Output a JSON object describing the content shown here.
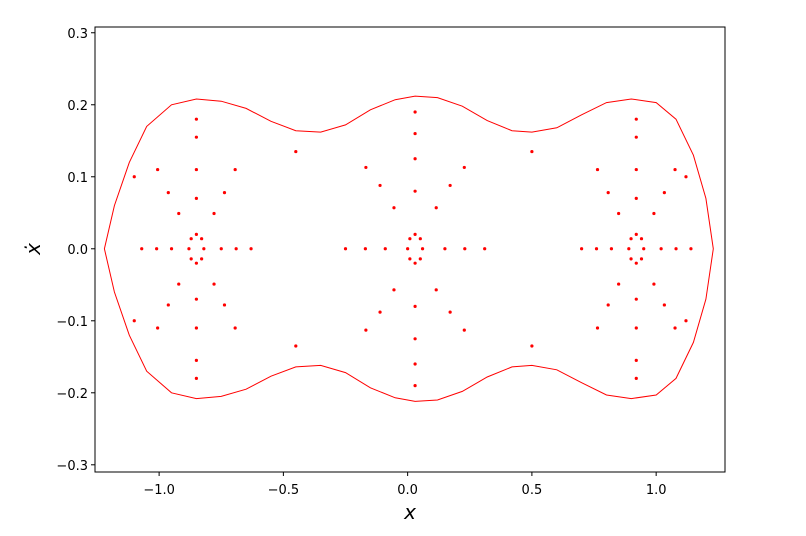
{
  "chart_data": {
    "type": "scatter",
    "xlabel": "x",
    "ylabel": "ẋ",
    "xlim": [
      -1.258,
      1.277
    ],
    "ylim": [
      -0.31,
      0.308
    ],
    "xticks": [
      {
        "value": -1.0,
        "label": "−1.0"
      },
      {
        "value": -0.5,
        "label": "−0.5"
      },
      {
        "value": 0.0,
        "label": "0.0"
      },
      0.5,
      {
        "value": 1.0,
        "label": "1.0"
      }
    ],
    "yticks": [
      {
        "value": -0.3,
        "label": "−0.3"
      },
      {
        "value": -0.2,
        "label": "−0.2"
      },
      {
        "value": -0.1,
        "label": "−0.1"
      },
      {
        "value": 0.0,
        "label": "0.0"
      },
      0.1,
      0.2,
      0.3
    ],
    "series": [
      {
        "mode": "line",
        "color": "#ff0000",
        "x": [
          -1.22,
          -1.18,
          -1.12,
          -1.05,
          -0.95,
          -0.85,
          -0.75,
          -0.65,
          -0.55,
          -0.45,
          -0.35,
          -0.25,
          -0.15,
          -0.05,
          0.03,
          0.12,
          0.22,
          0.32,
          0.42,
          0.5,
          0.6,
          0.7,
          0.8,
          0.9,
          1.0,
          1.08,
          1.15,
          1.2,
          1.23,
          1.2,
          1.15,
          1.08,
          1.0,
          0.9,
          0.8,
          0.7,
          0.6,
          0.5,
          0.42,
          0.32,
          0.22,
          0.12,
          0.03,
          -0.05,
          -0.15,
          -0.25,
          -0.35,
          -0.45,
          -0.55,
          -0.65,
          -0.75,
          -0.85,
          -0.95,
          -1.05,
          -1.12,
          -1.18
        ],
        "y": [
          0,
          0.06,
          0.12,
          0.17,
          0.2,
          0.208,
          0.205,
          0.195,
          0.177,
          0.164,
          0.162,
          0.172,
          0.193,
          0.207,
          0.212,
          0.21,
          0.198,
          0.178,
          0.164,
          0.162,
          0.168,
          0.186,
          0.203,
          0.208,
          0.203,
          0.18,
          0.13,
          0.07,
          0,
          -0.07,
          -0.13,
          -0.18,
          -0.203,
          -0.208,
          -0.203,
          -0.186,
          -0.168,
          -0.162,
          -0.164,
          -0.178,
          -0.198,
          -0.21,
          -0.212,
          -0.207,
          -0.193,
          -0.172,
          -0.162,
          -0.164,
          -0.177,
          -0.195,
          -0.205,
          -0.208,
          -0.2,
          -0.17,
          -0.12,
          -0.06
        ]
      },
      {
        "mode": "markers",
        "color": "#ff0000",
        "x": [
          -0.82,
          -0.829,
          -0.85,
          -0.871,
          -0.88,
          -0.871,
          -0.85,
          -0.829,
          -0.75,
          -0.779,
          -0.85,
          -0.921,
          -0.95,
          -0.921,
          -0.85,
          -0.779,
          -0.69,
          -0.737,
          -0.85,
          -0.963,
          -1.01,
          -0.963,
          -0.85,
          -0.737,
          -0.63,
          -0.694,
          -0.85,
          -1.006,
          -1.07,
          -1.006,
          -0.85,
          -0.694,
          0.95,
          0.941,
          0.92,
          0.899,
          0.89,
          0.899,
          0.92,
          0.941,
          1.02,
          0.991,
          0.92,
          0.849,
          0.82,
          0.849,
          0.92,
          0.991,
          1.08,
          1.033,
          0.92,
          0.807,
          0.76,
          0.807,
          0.92,
          1.033,
          1.14,
          1.076,
          0.92,
          0.764,
          0.7,
          0.764,
          0.92,
          1.076,
          0.06,
          0.051,
          0.03,
          0.009,
          0,
          0.009,
          0.03,
          0.051,
          0.15,
          0.115,
          0.03,
          -0.055,
          -0.09,
          -0.055,
          0.03,
          0.115,
          0.23,
          0.171,
          0.03,
          -0.111,
          -0.17,
          -0.111,
          0.03,
          0.171,
          0.31,
          0.228,
          0.03,
          -0.168,
          -0.25,
          -0.168,
          0.03,
          0.228,
          -1.1,
          -0.85,
          -0.45,
          0.03,
          0.5,
          0.92,
          1.12,
          -1.1,
          -0.85,
          -0.45,
          0.03,
          0.5,
          0.92,
          1.12
        ],
        "y": [
          0,
          0.014,
          0.02,
          0.014,
          0,
          -0.014,
          -0.02,
          -0.014,
          0,
          0.049,
          0.07,
          0.049,
          0,
          -0.049,
          -0.07,
          -0.049,
          0,
          0.078,
          0.11,
          0.078,
          0,
          -0.078,
          -0.11,
          -0.078,
          0,
          0.11,
          0.155,
          0.11,
          0,
          -0.11,
          -0.155,
          -0.11,
          0,
          0.014,
          0.02,
          0.014,
          0,
          -0.014,
          -0.02,
          -0.014,
          0,
          0.049,
          0.07,
          0.049,
          0,
          -0.049,
          -0.07,
          -0.049,
          0,
          0.078,
          0.11,
          0.078,
          0,
          -0.078,
          -0.11,
          -0.078,
          0,
          0.11,
          0.155,
          0.11,
          0,
          -0.11,
          -0.155,
          -0.11,
          0,
          0.014,
          0.02,
          0.014,
          0,
          -0.014,
          -0.02,
          -0.014,
          0,
          0.057,
          0.08,
          0.057,
          0,
          -0.057,
          -0.08,
          -0.057,
          0,
          0.088,
          0.125,
          0.088,
          0,
          -0.088,
          -0.125,
          -0.088,
          0,
          0.113,
          0.16,
          0.113,
          0,
          -0.113,
          -0.16,
          -0.113,
          0.1,
          0.18,
          0.135,
          0.19,
          0.135,
          0.18,
          0.1,
          -0.1,
          -0.18,
          -0.135,
          -0.19,
          -0.135,
          -0.18,
          -0.1
        ]
      }
    ]
  }
}
